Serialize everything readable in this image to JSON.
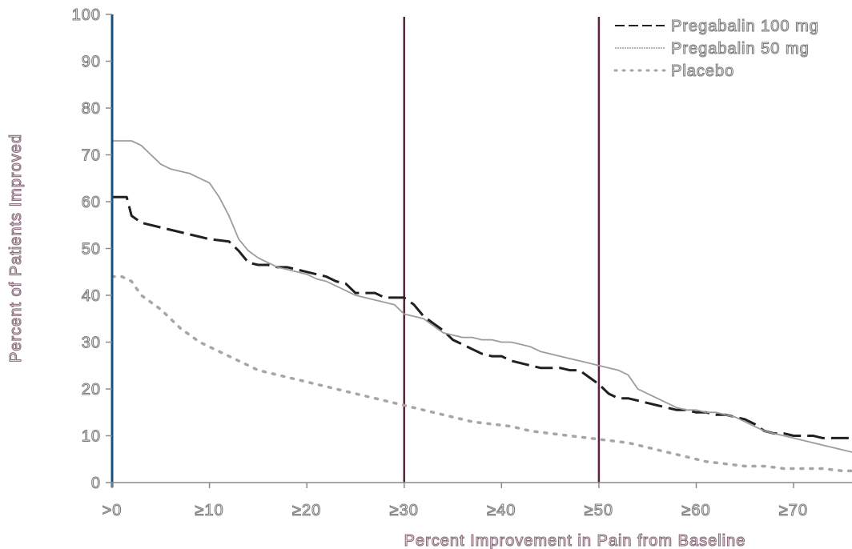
{
  "chart_data": {
    "type": "line",
    "title": "",
    "xlabel": "Percent Improvement in Pain from Baseline",
    "ylabel": "Percent of Patients Improved",
    "xlim": [
      0,
      76
    ],
    "ylim": [
      0,
      100
    ],
    "x_tick_values": [
      0,
      10,
      20,
      30,
      40,
      50,
      60,
      70
    ],
    "x_tick_labels": [
      ">0",
      "≥10",
      "≥20",
      "≥30",
      "≥40",
      "≥50",
      "≥60",
      "≥70"
    ],
    "y_ticks": [
      0,
      10,
      20,
      30,
      40,
      50,
      60,
      70,
      80,
      90,
      100
    ],
    "reference_lines_x": [
      30,
      50
    ],
    "grid": false,
    "legend_position": "top-right",
    "series": [
      {
        "name": "Pregabalin 100 mg",
        "line_style": "dashed",
        "color": "#202020",
        "x": [
          0,
          1.5,
          2,
          3,
          5,
          8,
          10,
          12,
          13,
          14,
          15,
          16,
          17,
          18,
          19,
          20,
          21,
          22,
          23,
          24,
          25,
          26,
          27,
          28,
          29,
          30,
          31,
          32,
          33,
          34,
          35,
          36,
          37,
          38,
          39,
          40,
          41,
          42,
          43,
          44,
          45,
          46,
          47,
          48,
          49,
          50,
          51,
          52,
          53,
          54,
          55,
          56,
          57,
          58,
          59,
          60,
          61,
          62,
          63,
          64,
          65,
          66,
          67,
          68,
          69,
          70,
          71,
          72,
          73,
          74,
          75,
          76
        ],
        "y": [
          61,
          61,
          57,
          55.5,
          54.5,
          53,
          52,
          51.5,
          49.5,
          47,
          46.5,
          46.5,
          46,
          46,
          45.5,
          45,
          44.5,
          44,
          43,
          42.5,
          40.5,
          40.5,
          40.5,
          39.5,
          39.5,
          39.5,
          38,
          35.5,
          34,
          32.5,
          30.5,
          29.5,
          28.5,
          27.5,
          27,
          27,
          26,
          25.5,
          25,
          24.5,
          24.5,
          24.5,
          24,
          24,
          22.5,
          21,
          19,
          18,
          18,
          17.5,
          17,
          16.5,
          16,
          15.5,
          15.5,
          15,
          15,
          14.5,
          14.5,
          14,
          13.5,
          12.5,
          11,
          10.5,
          10.5,
          10,
          10,
          10,
          9.5,
          9.5,
          9.5,
          9.5
        ]
      },
      {
        "name": "Pregabalin 50 mg",
        "line_style": "solid",
        "color": "#9c9c9c",
        "x": [
          0,
          1,
          2,
          3,
          4,
          5,
          6,
          7,
          8,
          9,
          10,
          11,
          12,
          13,
          14,
          15,
          16,
          17,
          18,
          19,
          20,
          21,
          22,
          23,
          24,
          25,
          26,
          27,
          28,
          29,
          30,
          31,
          32,
          33,
          34,
          35,
          36,
          37,
          38,
          39,
          40,
          41,
          42,
          43,
          44,
          45,
          46,
          47,
          48,
          49,
          50,
          51,
          52,
          53,
          54,
          55,
          56,
          57,
          58,
          59,
          60,
          61,
          62,
          63,
          64,
          65,
          66,
          67,
          68,
          69,
          70,
          71,
          72,
          73,
          74,
          75,
          76
        ],
        "y": [
          73,
          73,
          73,
          72,
          70,
          68,
          67,
          66.5,
          66,
          65,
          64,
          61,
          57,
          52,
          49.5,
          48,
          47,
          46,
          45.5,
          45,
          44.5,
          43.5,
          43,
          42,
          41,
          40,
          39.5,
          39,
          38.5,
          38,
          36,
          35.5,
          35,
          33.5,
          32,
          31.5,
          31,
          31,
          30.5,
          30.5,
          30,
          30,
          29.5,
          29,
          28,
          27.5,
          27,
          26.5,
          26,
          25.5,
          25,
          24.5,
          24,
          23,
          20,
          19,
          18,
          17,
          16,
          15.5,
          15.5,
          15,
          15,
          14.5,
          14,
          13,
          12,
          11,
          10.5,
          10,
          9.5,
          9,
          8.5,
          8,
          7.5,
          7,
          6.5
        ]
      },
      {
        "name": "Placebo",
        "line_style": "dotted",
        "color": "#a6a6a6",
        "x": [
          0,
          1,
          2,
          3,
          5,
          7,
          9,
          11,
          13,
          15,
          17,
          19,
          21,
          23,
          25,
          27,
          29,
          31,
          33,
          35,
          37,
          39,
          41,
          43,
          45,
          47,
          49,
          51,
          53,
          55,
          57,
          59,
          61,
          63,
          65,
          67,
          69,
          71,
          73,
          75,
          76
        ],
        "y": [
          44,
          44,
          43,
          40,
          37,
          33,
          30,
          28,
          26,
          24,
          23,
          22,
          21,
          20,
          19,
          18,
          17,
          16,
          15,
          14,
          13,
          12.5,
          12,
          11,
          10.5,
          10,
          9.5,
          9,
          8.5,
          7.5,
          6.5,
          5.5,
          4.5,
          4,
          3.5,
          3.5,
          3,
          3,
          3,
          2.5,
          2.5
        ]
      }
    ]
  }
}
